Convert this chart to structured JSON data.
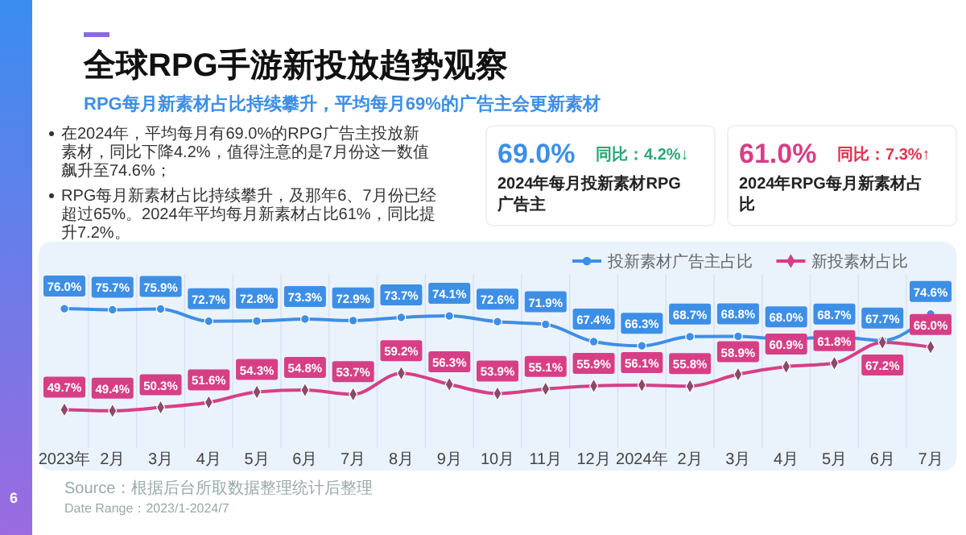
{
  "chart_data": {
    "type": "line",
    "title": "全球RPG手游新投放趋势观察",
    "subtitle": "RPG每月新素材占比持续攀升，平均每月69%的广告主会更新素材",
    "annotations": [
      "在2024年，平均每月有69.0%的RPG广告主投放新素材，同比下降4.2%，值得注意的是7月份这一数值飙升至74.6%；",
      "RPG每月新素材占比持续攀升，及那年6、7月份已经超过65%。2024年平均每月新素材占比61%，同比提升7.2%。",
      "69.0%",
      "同比：4.2%↓",
      "2024年每月投新素材RPG广告主",
      "61.0%",
      "同比：7.3%↑",
      "2024年RPG每月新素材占比",
      "Source：根据后台所取数据整理统计后整理",
      "Date Range：2023/1-2024/7",
      "6"
    ],
    "categories": [
      "2023年",
      "2月",
      "3月",
      "4月",
      "5月",
      "6月",
      "7月",
      "8月",
      "9月",
      "10月",
      "11月",
      "12月",
      "2024年",
      "2月",
      "3月",
      "4月",
      "5月",
      "6月",
      "7月"
    ],
    "series": [
      {
        "name": "投新素材广告主占比",
        "color": "#3d8fe6",
        "marker": "circle",
        "values": [
          76.0,
          75.7,
          75.9,
          72.7,
          72.8,
          73.3,
          72.9,
          73.7,
          74.1,
          72.6,
          71.9,
          67.4,
          66.3,
          68.7,
          68.8,
          68.0,
          68.7,
          67.7,
          74.6
        ],
        "value_labels": [
          "76.0%",
          "75.7%",
          "75.9%",
          "72.7%",
          "72.8%",
          "73.3%",
          "72.9%",
          "73.7%",
          "74.1%",
          "72.6%",
          "71.9%",
          "67.4%",
          "66.3%",
          "68.7%",
          "68.8%",
          "68.0%",
          "68.7%",
          "67.7%",
          "74.6%"
        ]
      },
      {
        "name": "新投素材占比",
        "color": "#d63f86",
        "marker": "diamond",
        "values": [
          49.7,
          49.4,
          50.3,
          51.6,
          54.3,
          54.8,
          53.7,
          59.2,
          56.3,
          53.9,
          55.1,
          55.9,
          56.1,
          55.8,
          58.9,
          60.9,
          61.8,
          67.2,
          66.0
        ],
        "value_labels": [
          "49.7%",
          "49.4%",
          "50.3%",
          "51.6%",
          "54.3%",
          "54.8%",
          "53.7%",
          "59.2%",
          "56.3%",
          "53.9%",
          "55.1%",
          "55.9%",
          "56.1%",
          "55.8%",
          "58.9%",
          "60.9%",
          "61.8%",
          "67.2%",
          "66.0%"
        ]
      }
    ],
    "grid": "x",
    "legend": "top right"
  }
}
